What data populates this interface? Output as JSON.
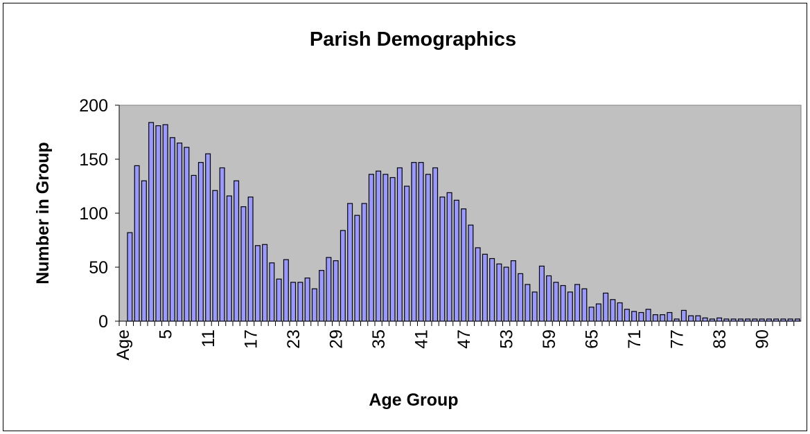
{
  "chart_data": {
    "type": "bar",
    "title": "Parish Demographics",
    "x_label": "Age Group",
    "y_label": "Number in Group",
    "categories": [
      "Age",
      null,
      null,
      null,
      null,
      null,
      "5",
      null,
      null,
      null,
      null,
      null,
      "11",
      null,
      null,
      null,
      null,
      null,
      "17",
      null,
      null,
      null,
      null,
      null,
      "23",
      null,
      null,
      null,
      null,
      null,
      "29",
      null,
      null,
      null,
      null,
      null,
      "35",
      null,
      null,
      null,
      null,
      null,
      "41",
      null,
      null,
      null,
      null,
      null,
      "47",
      null,
      null,
      null,
      null,
      null,
      "53",
      null,
      null,
      null,
      null,
      null,
      "59",
      null,
      null,
      null,
      null,
      null,
      "65",
      null,
      null,
      null,
      null,
      null,
      "71",
      null,
      null,
      null,
      null,
      null,
      "77",
      null,
      null,
      null,
      null,
      null,
      "83",
      null,
      null,
      null,
      null,
      null,
      "90",
      null,
      null,
      null,
      null,
      null
    ],
    "values": [
      null,
      82,
      144,
      130,
      184,
      181,
      182,
      170,
      165,
      161,
      135,
      147,
      155,
      121,
      142,
      116,
      130,
      106,
      115,
      70,
      71,
      54,
      39,
      57,
      36,
      36,
      40,
      30,
      47,
      59,
      56,
      84,
      109,
      98,
      109,
      136,
      139,
      136,
      133,
      142,
      125,
      147,
      147,
      136,
      142,
      115,
      119,
      112,
      104,
      89,
      68,
      62,
      58,
      53,
      50,
      56,
      44,
      34,
      27,
      51,
      42,
      36,
      33,
      27,
      34,
      30,
      13,
      16,
      26,
      20,
      17,
      11,
      9,
      8,
      11,
      6,
      6,
      8,
      2,
      10,
      5,
      5,
      3,
      2,
      3,
      2,
      2,
      2,
      2,
      2,
      2,
      2,
      2,
      2,
      2,
      2
    ],
    "color": "#9999ff",
    "plot_background": "#c0c0c0",
    "ylim": [
      0,
      200
    ],
    "yticks": [
      0,
      50,
      100,
      150,
      200
    ],
    "grid": false
  }
}
